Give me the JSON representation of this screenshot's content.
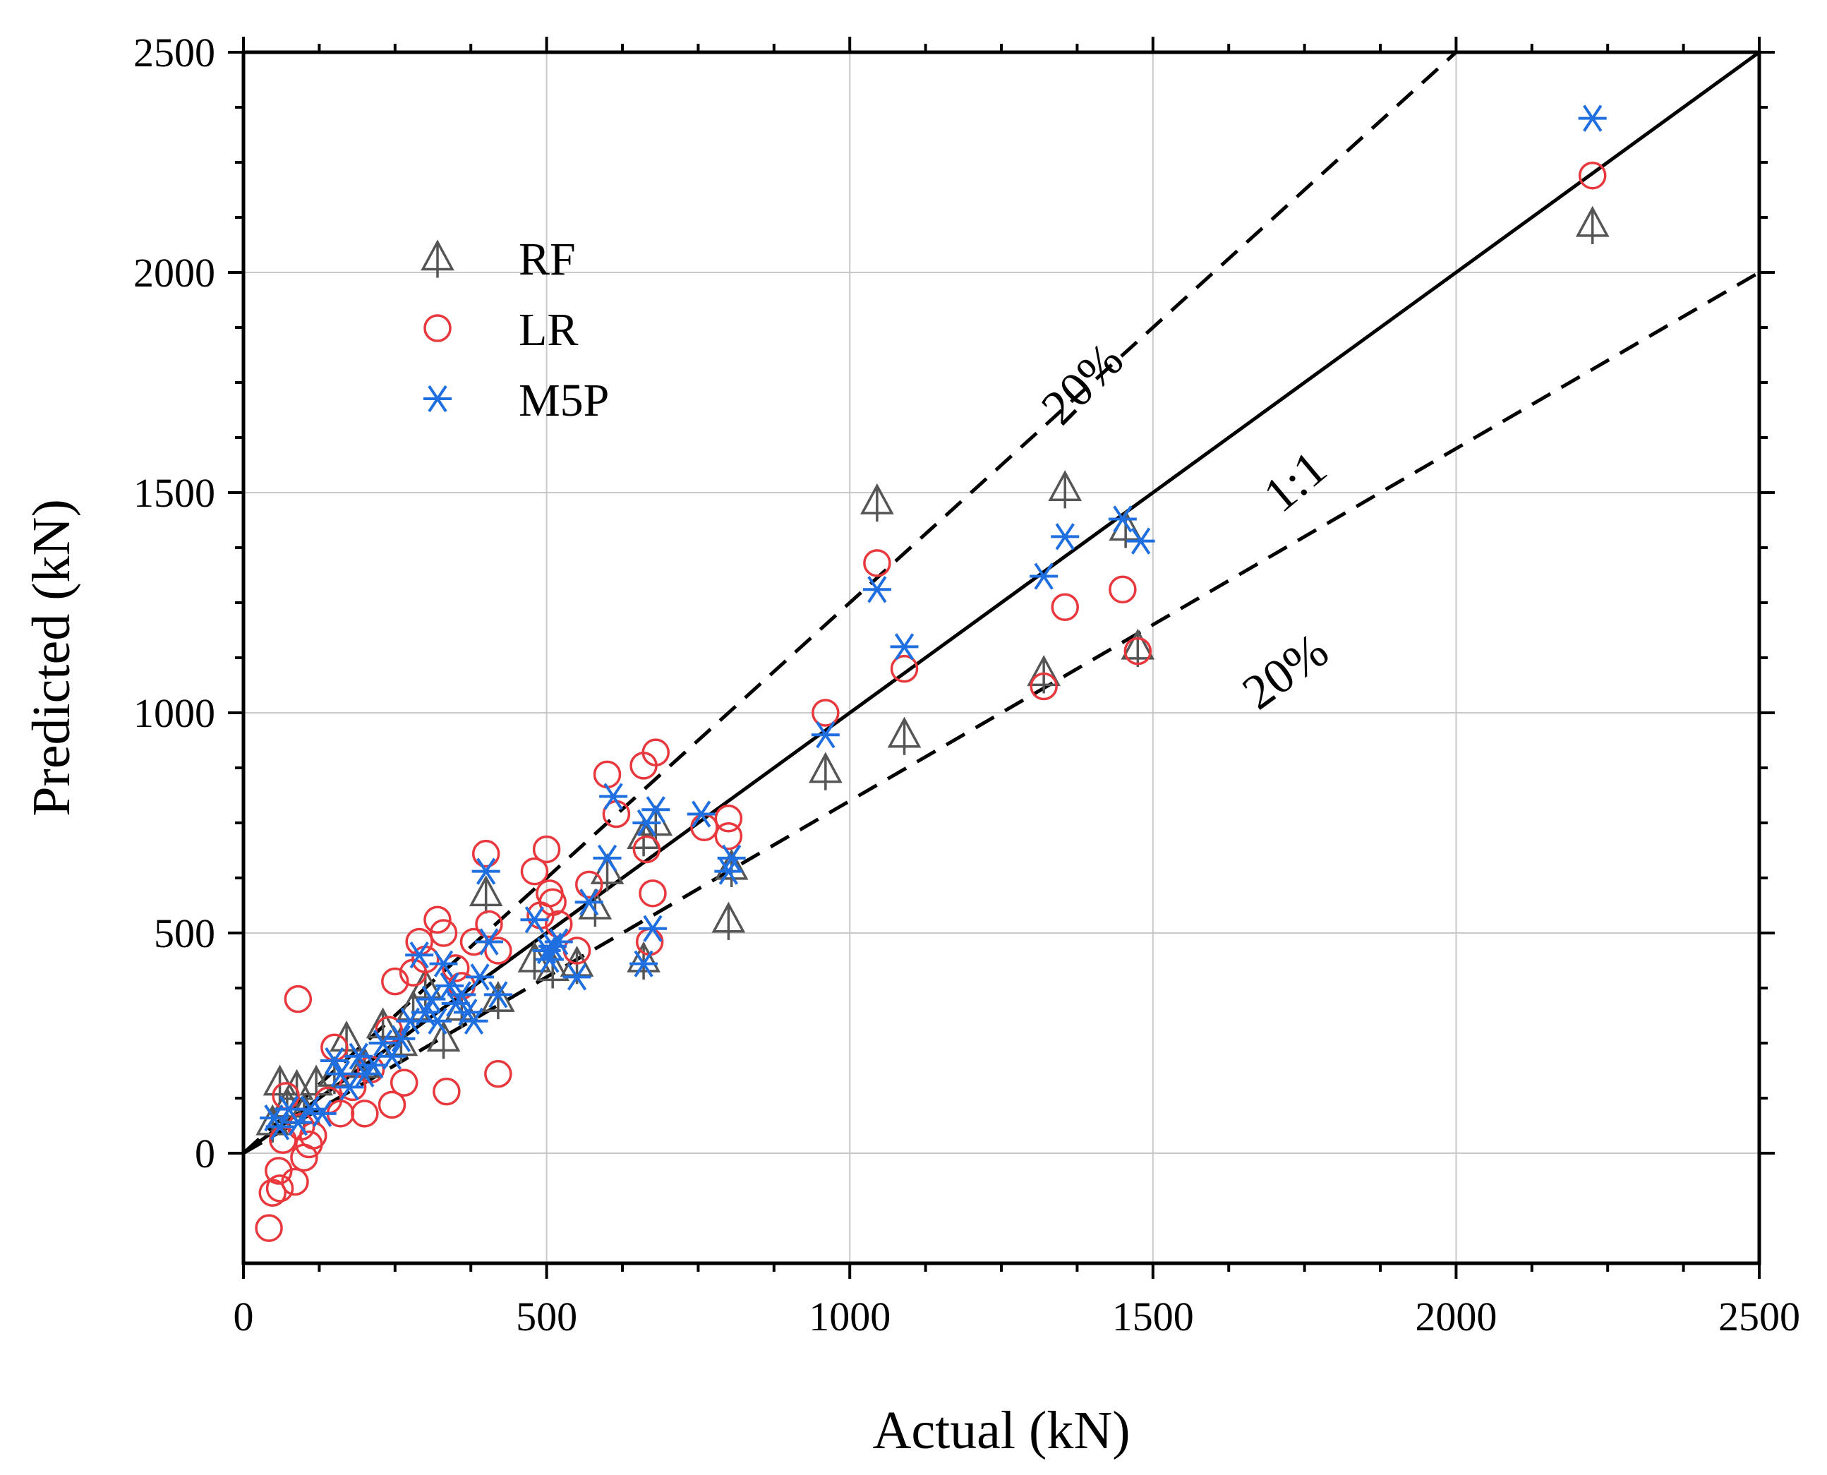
{
  "chart_data": {
    "type": "scatter",
    "title": "",
    "xlabel": "Actual (kN)",
    "ylabel": "Predicted (kN)",
    "xlim": [
      0,
      2500
    ],
    "ylim": [
      -250,
      2500
    ],
    "x_ticks": [
      0,
      500,
      1000,
      1500,
      2000,
      2500
    ],
    "y_ticks": [
      0,
      500,
      1000,
      1500,
      2000,
      2500
    ],
    "x_tick_labels": [
      "0",
      "500",
      "1000",
      "1500",
      "2000",
      "2500"
    ],
    "y_tick_labels": [
      "0",
      "500",
      "1000",
      "1500",
      "2000",
      "2500"
    ],
    "grid": true,
    "legend_position": "top-left",
    "reference_lines": [
      {
        "name": "1:1",
        "slope": 1.0,
        "style": "solid",
        "label": "1:1"
      },
      {
        "name": "plus-20",
        "slope": 1.25,
        "style": "dashed",
        "label": "20%"
      },
      {
        "name": "minus-20",
        "slope": 0.8,
        "style": "dashed",
        "label": "20%"
      }
    ],
    "series": [
      {
        "name": "RF",
        "marker": "triangle",
        "color": "#555555",
        "points": [
          [
            48,
            70
          ],
          [
            60,
            160
          ],
          [
            72,
            110
          ],
          [
            88,
            150
          ],
          [
            100,
            95
          ],
          [
            120,
            160
          ],
          [
            150,
            180
          ],
          [
            170,
            260
          ],
          [
            200,
            200
          ],
          [
            230,
            290
          ],
          [
            260,
            250
          ],
          [
            280,
            330
          ],
          [
            300,
            380
          ],
          [
            330,
            260
          ],
          [
            360,
            330
          ],
          [
            400,
            590
          ],
          [
            420,
            350
          ],
          [
            480,
            440
          ],
          [
            510,
            420
          ],
          [
            550,
            430
          ],
          [
            580,
            560
          ],
          [
            600,
            640
          ],
          [
            660,
            440
          ],
          [
            660,
            720
          ],
          [
            680,
            750
          ],
          [
            800,
            530
          ],
          [
            805,
            650
          ],
          [
            960,
            870
          ],
          [
            1045,
            1480
          ],
          [
            1090,
            950
          ],
          [
            1320,
            1090
          ],
          [
            1355,
            1510
          ],
          [
            1455,
            1420
          ],
          [
            1475,
            1150
          ],
          [
            2225,
            2110
          ]
        ]
      },
      {
        "name": "LR",
        "marker": "circle",
        "color": "#e8383d",
        "points": [
          [
            42,
            -170
          ],
          [
            48,
            -90
          ],
          [
            58,
            -40
          ],
          [
            60,
            -80
          ],
          [
            65,
            30
          ],
          [
            70,
            130
          ],
          [
            85,
            -65
          ],
          [
            90,
            350
          ],
          [
            95,
            60
          ],
          [
            100,
            -10
          ],
          [
            108,
            20
          ],
          [
            115,
            40
          ],
          [
            140,
            120
          ],
          [
            150,
            240
          ],
          [
            160,
            90
          ],
          [
            180,
            150
          ],
          [
            200,
            90
          ],
          [
            210,
            190
          ],
          [
            240,
            280
          ],
          [
            245,
            110
          ],
          [
            250,
            390
          ],
          [
            265,
            160
          ],
          [
            280,
            410
          ],
          [
            290,
            480
          ],
          [
            300,
            440
          ],
          [
            320,
            530
          ],
          [
            330,
            500
          ],
          [
            335,
            140
          ],
          [
            350,
            420
          ],
          [
            360,
            380
          ],
          [
            380,
            480
          ],
          [
            400,
            680
          ],
          [
            405,
            520
          ],
          [
            420,
            180
          ],
          [
            420,
            460
          ],
          [
            480,
            640
          ],
          [
            490,
            540
          ],
          [
            500,
            690
          ],
          [
            505,
            590
          ],
          [
            510,
            570
          ],
          [
            520,
            520
          ],
          [
            550,
            460
          ],
          [
            570,
            610
          ],
          [
            600,
            860
          ],
          [
            615,
            770
          ],
          [
            660,
            880
          ],
          [
            665,
            690
          ],
          [
            670,
            480
          ],
          [
            675,
            590
          ],
          [
            680,
            910
          ],
          [
            760,
            740
          ],
          [
            800,
            720
          ],
          [
            800,
            760
          ],
          [
            960,
            1000
          ],
          [
            1045,
            1340
          ],
          [
            1090,
            1100
          ],
          [
            1320,
            1060
          ],
          [
            1355,
            1240
          ],
          [
            1450,
            1280
          ],
          [
            1475,
            1140
          ],
          [
            2225,
            2220
          ]
        ]
      },
      {
        "name": "M5P",
        "marker": "asterisk",
        "color": "#1f6fe0",
        "points": [
          [
            50,
            80
          ],
          [
            60,
            60
          ],
          [
            75,
            100
          ],
          [
            90,
            70
          ],
          [
            110,
            100
          ],
          [
            130,
            90
          ],
          [
            150,
            210
          ],
          [
            160,
            180
          ],
          [
            175,
            150
          ],
          [
            190,
            220
          ],
          [
            200,
            180
          ],
          [
            215,
            200
          ],
          [
            230,
            250
          ],
          [
            245,
            220
          ],
          [
            260,
            260
          ],
          [
            275,
            300
          ],
          [
            290,
            450
          ],
          [
            300,
            320
          ],
          [
            310,
            350
          ],
          [
            320,
            300
          ],
          [
            330,
            430
          ],
          [
            340,
            380
          ],
          [
            350,
            340
          ],
          [
            360,
            360
          ],
          [
            370,
            320
          ],
          [
            380,
            300
          ],
          [
            390,
            400
          ],
          [
            400,
            640
          ],
          [
            405,
            480
          ],
          [
            420,
            360
          ],
          [
            480,
            530
          ],
          [
            500,
            460
          ],
          [
            505,
            440
          ],
          [
            510,
            470
          ],
          [
            520,
            480
          ],
          [
            550,
            400
          ],
          [
            570,
            570
          ],
          [
            600,
            670
          ],
          [
            610,
            810
          ],
          [
            660,
            430
          ],
          [
            665,
            750
          ],
          [
            675,
            510
          ],
          [
            680,
            780
          ],
          [
            755,
            770
          ],
          [
            800,
            640
          ],
          [
            805,
            670
          ],
          [
            960,
            950
          ],
          [
            1045,
            1280
          ],
          [
            1090,
            1150
          ],
          [
            1320,
            1310
          ],
          [
            1355,
            1400
          ],
          [
            1450,
            1440
          ],
          [
            1480,
            1390
          ],
          [
            2225,
            2350
          ]
        ]
      }
    ],
    "annotations": [
      {
        "text": "20%",
        "anchor": "upper dashed line"
      },
      {
        "text": "1:1",
        "anchor": "solid line"
      },
      {
        "text": "20%",
        "anchor": "lower dashed line"
      }
    ]
  }
}
